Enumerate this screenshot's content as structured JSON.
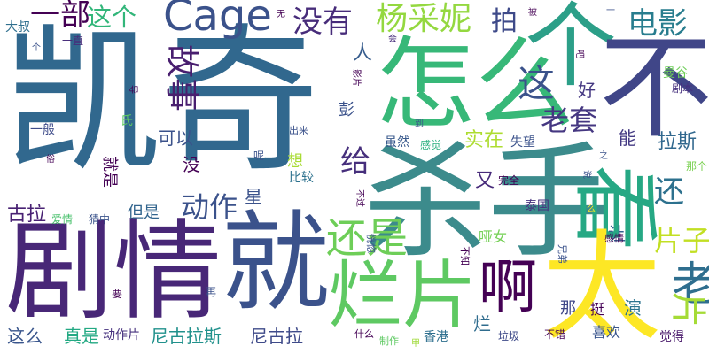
{
  "words": [
    {
      "text": "凯奇",
      "color": "#31688e"
    },
    {
      "text": "杀手",
      "color": "#3c8b8c"
    },
    {
      "text": "怎么",
      "color": "#37b878"
    },
    {
      "text": "剧情",
      "color": "#482777"
    },
    {
      "text": "就",
      "color": "#3b528b"
    },
    {
      "text": "个",
      "color": "#2c9f88"
    },
    {
      "text": "不",
      "color": "#404688"
    },
    {
      "text": "看",
      "color": "#26a884"
    },
    {
      "text": "太",
      "color": "#fde725"
    },
    {
      "text": "烂片",
      "color": "#5ec962"
    },
    {
      "text": "啊",
      "color": "#440154"
    },
    {
      "text": "老",
      "color": "#2e6e8e"
    },
    {
      "text": "片",
      "color": "#a5db36"
    },
    {
      "text": "还是",
      "color": "#6ece58"
    },
    {
      "text": "没有",
      "color": "#472c7a"
    },
    {
      "text": "杨采妮",
      "color": "#94d840"
    },
    {
      "text": "电影",
      "color": "#287d8e"
    },
    {
      "text": "Cage",
      "color": "#3b528b"
    },
    {
      "text": "一部",
      "color": "#440154"
    },
    {
      "text": "这个",
      "color": "#32b67a"
    },
    {
      "text": "拍",
      "color": "#3e4a89"
    },
    {
      "text": "故事",
      "color": "#481e6f"
    },
    {
      "text": "这",
      "color": "#3b528b"
    },
    {
      "text": "老套",
      "color": "#453781"
    },
    {
      "text": "动作",
      "color": "#3b528b"
    },
    {
      "text": "给",
      "color": "#462f7c"
    },
    {
      "text": "还",
      "color": "#2d718e"
    },
    {
      "text": "片子",
      "color": "#c2df23"
    },
    {
      "text": "古拉",
      "color": "#482173"
    },
    {
      "text": "尼古拉斯",
      "color": "#21918c"
    },
    {
      "text": "尼古拉",
      "color": "#3e4a89"
    },
    {
      "text": "实在",
      "color": "#addc30"
    },
    {
      "text": "拉斯",
      "color": "#31688e"
    },
    {
      "text": "人",
      "color": "#365c8d"
    },
    {
      "text": "可以",
      "color": "#3b528b"
    },
    {
      "text": "好",
      "color": "#453882"
    },
    {
      "text": "这么",
      "color": "#39558c"
    },
    {
      "text": "真是",
      "color": "#23a983"
    },
    {
      "text": "又",
      "color": "#472a7a"
    },
    {
      "text": "能",
      "color": "#443a83"
    },
    {
      "text": "演",
      "color": "#2c738e"
    },
    {
      "text": "让",
      "color": "#35608d"
    },
    {
      "text": "星",
      "color": "#3b528b"
    },
    {
      "text": "彭",
      "color": "#3b528b"
    },
    {
      "text": "没",
      "color": "#440154"
    },
    {
      "text": "但是",
      "color": "#32658e"
    },
    {
      "text": "就是",
      "color": "#440154"
    },
    {
      "text": "想",
      "color": "#a8db34"
    },
    {
      "text": "比较",
      "color": "#2c718e"
    },
    {
      "text": "动作片",
      "color": "#46307e"
    },
    {
      "text": "那",
      "color": "#3f4788"
    },
    {
      "text": "挺",
      "color": "#440154"
    },
    {
      "text": "哑女",
      "color": "#74d055"
    },
    {
      "text": "喜欢",
      "color": "#39558c"
    },
    {
      "text": "觉得",
      "color": "#48186a"
    },
    {
      "text": "香港",
      "color": "#2e6f8e"
    },
    {
      "text": "虽然",
      "color": "#38598c"
    },
    {
      "text": "曼谷",
      "color": "#6ece58"
    },
    {
      "text": "失望",
      "color": "#3b528b"
    },
    {
      "text": "泰国",
      "color": "#46327e"
    },
    {
      "text": "一般",
      "color": "#3e4c8a"
    },
    {
      "text": "大叔",
      "color": "#2e6f8e"
    },
    {
      "text": "一直",
      "color": "#472c7a"
    },
    {
      "text": "猜中",
      "color": "#3a538b"
    },
    {
      "text": "爱情",
      "color": "#4ac16d"
    },
    {
      "text": "垃圾",
      "color": "#3e4a89"
    },
    {
      "text": "不错",
      "color": "#440154"
    },
    {
      "text": "完全",
      "color": "#440154"
    },
    {
      "text": "剧本",
      "color": "#46307e"
    },
    {
      "text": "那个",
      "color": "#7ad151"
    },
    {
      "text": "感觉",
      "color": "#2ab07f"
    },
    {
      "text": "兄弟",
      "color": "#3b528b"
    },
    {
      "text": "感情",
      "color": "#440154"
    },
    {
      "text": "制作",
      "color": "#5ec962"
    },
    {
      "text": "恍惚",
      "color": "#3b528b"
    },
    {
      "text": "不知",
      "color": "#440154"
    },
    {
      "text": "什么",
      "color": "#440154"
    },
    {
      "text": "出来",
      "color": "#3b528b"
    },
    {
      "text": "影片",
      "color": "#440154"
    },
    {
      "text": "无",
      "color": "#440154"
    },
    {
      "text": "会",
      "color": "#472d7b"
    },
    {
      "text": "被",
      "color": "#440154"
    },
    {
      "text": "一",
      "color": "#3b528b"
    },
    {
      "text": "吧",
      "color": "#440154"
    },
    {
      "text": "个",
      "color": "#3b528b"
    },
    {
      "text": "导",
      "color": "#440154"
    },
    {
      "text": "氏",
      "color": "#5ec962"
    },
    {
      "text": "俗",
      "color": "#440154"
    },
    {
      "text": "到",
      "color": "#3b528b"
    },
    {
      "text": "说",
      "color": "#3b528b"
    },
    {
      "text": "之",
      "color": "#3b528b"
    },
    {
      "text": "呢",
      "color": "#3b528b"
    },
    {
      "text": "要",
      "color": "#440154"
    },
    {
      "text": "再",
      "color": "#3b528b"
    },
    {
      "text": "甲",
      "color": "#a0da39"
    },
    {
      "text": "烂",
      "color": "#2f6c8e"
    },
    {
      "text": "不过",
      "color": "#440154"
    },
    {
      "text": "么",
      "color": "#fde725"
    }
  ]
}
